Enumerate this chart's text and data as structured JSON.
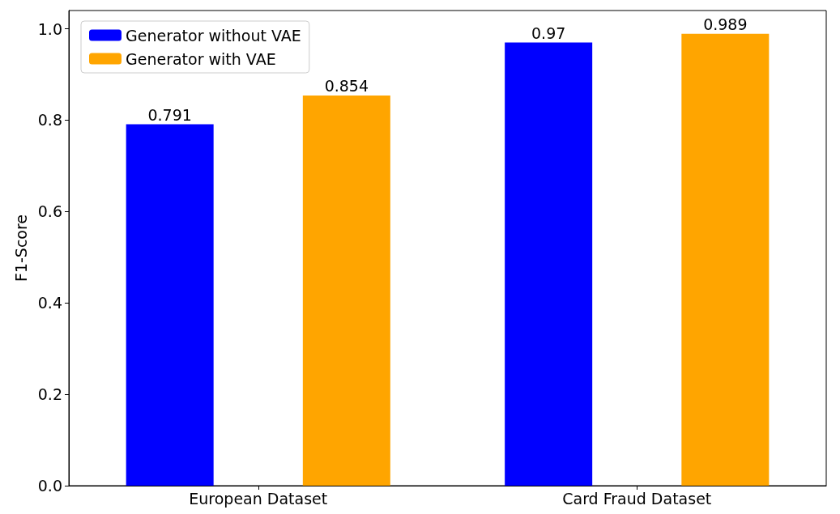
{
  "chart_data": {
    "type": "bar",
    "ylabel": "F1-Score",
    "categories": [
      "European Dataset",
      "Card Fraud Dataset"
    ],
    "series": [
      {
        "name": "Generator without VAE",
        "color": "#0000ff",
        "values": [
          0.791,
          0.97
        ]
      },
      {
        "name": "Generator with VAE",
        "color": "#ffa500",
        "values": [
          0.854,
          0.989
        ]
      }
    ],
    "ylim": [
      0,
      1.04
    ],
    "yticks": [
      {
        "value": 0,
        "label": "0.0"
      },
      0.2,
      0.4,
      0.6,
      0.8,
      {
        "value": 1,
        "label": "1.0"
      }
    ],
    "data_labels": true,
    "grid": false,
    "legend": "top left"
  }
}
